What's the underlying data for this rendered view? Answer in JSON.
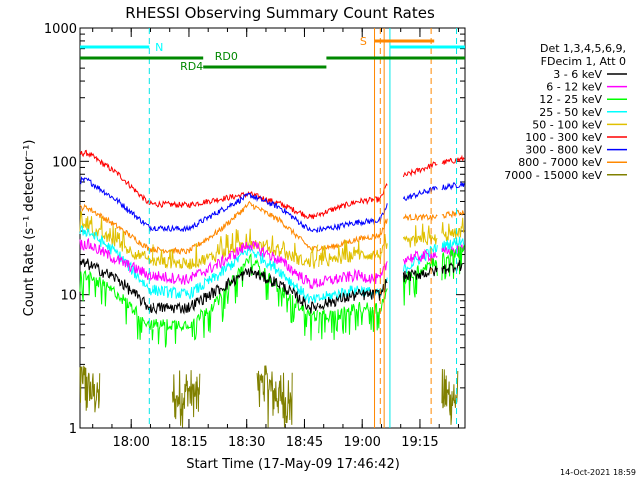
{
  "chart_data": {
    "type": "line",
    "title": "RHESSI Observing Summary Count Rates",
    "xlabel": "Start Time (17-May-09 17:46:42)",
    "ylabel": "Count Rate (s⁻¹ detector⁻¹)",
    "yscale": "log",
    "ylim": [
      1,
      1000
    ],
    "xlim_minutes_after_start": [
      0,
      100
    ],
    "x_tick_labels": [
      "18:00",
      "18:15",
      "18:30",
      "18:45",
      "19:00",
      "19:15"
    ],
    "x_tick_minutes": [
      13.3,
      28.3,
      43.3,
      58.3,
      73.3,
      88.3
    ],
    "y_tick_labels": [
      "1",
      "10",
      "100",
      "1000"
    ],
    "y_tick_values": [
      1,
      10,
      100,
      1000
    ],
    "legend_header": [
      "Det 1,3,4,5,6,9,",
      "FDecim 1, Att 0"
    ],
    "legend_position": "top-right",
    "timestamp": "14-Oct-2021 18:59",
    "flags": {
      "night_label": "N",
      "saa_label": "S",
      "rd0_label": "RD0",
      "rd4_label": "RD4",
      "colors": {
        "night": "#00ffff",
        "saa": "#ff8800",
        "rd": "#008800",
        "flare": "#e87020"
      }
    },
    "segments_minutes": [
      [
        0,
        19
      ],
      [
        19,
        62
      ],
      [
        62,
        80
      ],
      [
        84,
        93
      ],
      [
        94,
        100
      ]
    ],
    "vertical_markers_minutes": [
      {
        "x": 18.0,
        "color": "#00e8e8",
        "style": "dashed"
      },
      {
        "x": 76.5,
        "color": "#ff8800",
        "style": "solid"
      },
      {
        "x": 78.0,
        "color": "#ff8800",
        "style": "dashed"
      },
      {
        "x": 79.0,
        "color": "#ff8800",
        "style": "solid"
      },
      {
        "x": 80.5,
        "color": "#00e8e8",
        "style": "solid"
      },
      {
        "x": 91.2,
        "color": "#ff8800",
        "style": "dashed"
      },
      {
        "x": 97.8,
        "color": "#00e8e8",
        "style": "dashed"
      }
    ],
    "series": [
      {
        "name": "3 - 6 keV",
        "color": "#000000",
        "x": [
          2,
          10,
          18,
          28,
          36,
          44,
          52,
          60,
          66,
          72,
          78,
          80,
          92,
          96,
          100
        ],
        "values": [
          17,
          13,
          8,
          8,
          11,
          15,
          12,
          8,
          9,
          10,
          10,
          13,
          15,
          16,
          17
        ]
      },
      {
        "name": "6 - 12 keV",
        "color": "#ff00ff",
        "x": [
          2,
          10,
          18,
          28,
          36,
          44,
          52,
          60,
          66,
          72,
          78,
          80,
          92,
          96,
          100
        ],
        "values": [
          24,
          18,
          14,
          13,
          17,
          24,
          18,
          12,
          13,
          14,
          13,
          18,
          20,
          21,
          22
        ]
      },
      {
        "name": "12 - 25 keV",
        "color": "#00ff00",
        "x": [
          2,
          10,
          18,
          28,
          36,
          44,
          52,
          60,
          66,
          72,
          78,
          80,
          92,
          96,
          100
        ],
        "values": [
          14,
          10,
          6,
          6,
          9,
          19,
          11,
          7,
          7,
          8,
          8,
          11,
          18,
          20,
          22
        ]
      },
      {
        "name": "25 - 50 keV",
        "color": "#00ffff",
        "x": [
          2,
          10,
          18,
          28,
          36,
          44,
          52,
          60,
          66,
          72,
          78,
          80,
          92,
          96,
          100
        ],
        "values": [
          30,
          20,
          11,
          10,
          14,
          22,
          15,
          9,
          10,
          11,
          10,
          13,
          22,
          24,
          26
        ]
      },
      {
        "name": "50 - 100 keV",
        "color": "#e0c000",
        "x": [
          2,
          10,
          18,
          28,
          36,
          44,
          52,
          60,
          66,
          72,
          78,
          80,
          92,
          96,
          100
        ],
        "values": [
          32,
          24,
          18,
          17,
          20,
          25,
          21,
          17,
          18,
          20,
          20,
          24,
          26,
          28,
          30
        ]
      },
      {
        "name": "100 - 300 keV",
        "color": "#ff0000",
        "x": [
          2,
          10,
          18,
          28,
          36,
          44,
          52,
          60,
          66,
          72,
          78,
          80,
          92,
          96,
          100
        ],
        "values": [
          115,
          80,
          48,
          47,
          52,
          57,
          48,
          38,
          44,
          50,
          52,
          70,
          95,
          100,
          105
        ]
      },
      {
        "name": "300 - 800 keV",
        "color": "#0000ff",
        "x": [
          2,
          10,
          18,
          28,
          36,
          44,
          52,
          60,
          66,
          72,
          78,
          80,
          92,
          96,
          100
        ],
        "values": [
          72,
          50,
          32,
          31,
          42,
          56,
          45,
          30,
          32,
          35,
          36,
          48,
          62,
          65,
          68
        ]
      },
      {
        "name": "800 - 7000 keV",
        "color": "#ff8800",
        "x": [
          2,
          10,
          18,
          28,
          36,
          44,
          52,
          60,
          66,
          72,
          78,
          80,
          92,
          96,
          100
        ],
        "values": [
          45,
          32,
          22,
          21,
          30,
          48,
          36,
          22,
          23,
          26,
          28,
          38,
          38,
          40,
          42
        ]
      },
      {
        "name": "7000 - 15000 keV",
        "color": "#808000",
        "x": [
          1,
          3,
          5,
          26,
          28,
          30,
          48,
          50,
          52,
          54,
          95,
          97
        ],
        "values": [
          2.5,
          1.8,
          1.6,
          1.5,
          1.9,
          1.5,
          2.5,
          1.8,
          1.5,
          1.3,
          1.6,
          1.4
        ]
      }
    ]
  }
}
